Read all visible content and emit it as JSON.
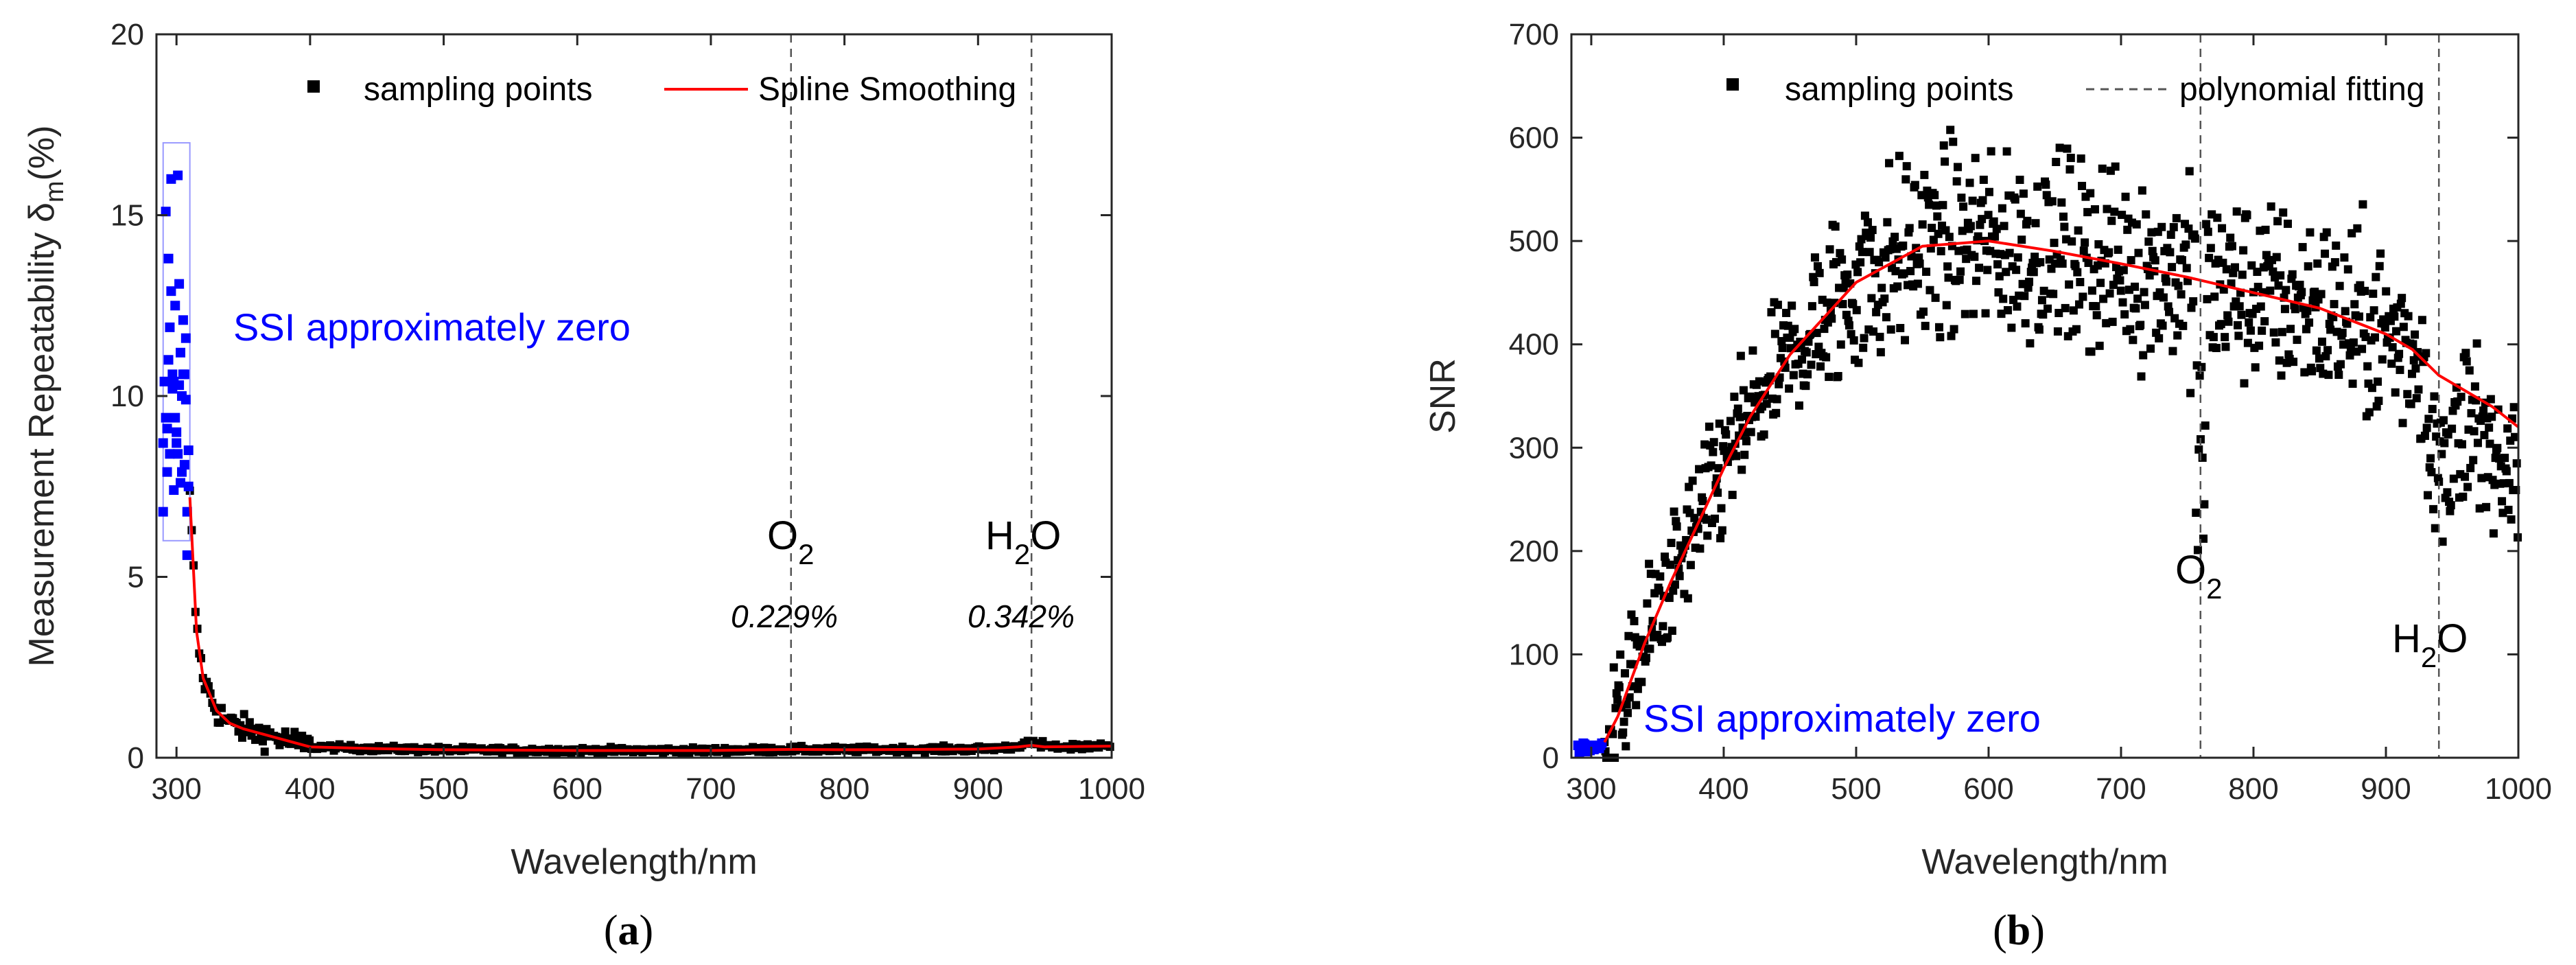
{
  "chart_data": [
    {
      "type": "scatter",
      "panel": "(a)",
      "panel_letter": "a",
      "xlabel": "Wavelength/nm",
      "ylabel": "Measurement Repeatability δ",
      "ylabel_sub": "m",
      "ylabel_unit": "(%)",
      "xlim": [
        285,
        1000
      ],
      "ylim": [
        0,
        20
      ],
      "xticks": [
        300,
        400,
        500,
        600,
        700,
        800,
        900,
        1000
      ],
      "yticks": [
        0,
        5,
        10,
        15,
        20
      ],
      "legend": {
        "points": "sampling points",
        "line": "Spline Smoothing",
        "position": "top"
      },
      "ssi_label": "SSI approximately zero",
      "ssi_box": {
        "x": [
          290,
          310
        ],
        "y": [
          6,
          17
        ]
      },
      "ssi_points": {
        "x": [
          290,
          291,
          292,
          293,
          294,
          295,
          296,
          297,
          298,
          299,
          300,
          301,
          302,
          303,
          304,
          305,
          306,
          307,
          308,
          309,
          290,
          292,
          294,
          296,
          298,
          300,
          302,
          304,
          306,
          308,
          291,
          293,
          295,
          297,
          299,
          301,
          303,
          305,
          307,
          309
        ],
        "y": [
          6.8,
          10.4,
          15.1,
          9.1,
          13.8,
          8.4,
          16.0,
          10.6,
          7.4,
          12.5,
          9.0,
          16.1,
          13.1,
          7.6,
          10.0,
          12.1,
          8.1,
          11.6,
          5.6,
          7.5,
          8.7,
          9.4,
          11.0,
          12.9,
          10.4,
          8.7,
          10.3,
          7.9,
          10.6,
          6.8,
          10.4,
          7.9,
          11.9,
          10.2,
          9.4,
          8.4,
          11.2,
          10.6,
          9.9,
          8.5
        ]
      },
      "curve": {
        "x": [
          310,
          315,
          320,
          330,
          340,
          350,
          370,
          400,
          450,
          500,
          600,
          700,
          760,
          800,
          900,
          930,
          940,
          950,
          1000
        ],
        "y": [
          7.2,
          3.5,
          2.2,
          1.3,
          0.95,
          0.8,
          0.6,
          0.3,
          0.25,
          0.22,
          0.2,
          0.2,
          0.229,
          0.22,
          0.24,
          0.3,
          0.342,
          0.3,
          0.32
        ]
      },
      "lines": [
        {
          "x": 760,
          "label": "O",
          "sub": "2",
          "value": "0.229%"
        },
        {
          "x": 940,
          "label": "H",
          "sub": "2",
          "label2": "O",
          "value": "0.342%"
        }
      ],
      "colors": {
        "points": "#000000",
        "curve": "#ff0000",
        "ssi": "#0000ff",
        "ssi_box": "#9999ff",
        "vline": "#555555"
      }
    },
    {
      "type": "scatter",
      "panel": "(b)",
      "panel_letter": "b",
      "xlabel": "Wavelength/nm",
      "ylabel": "SNR",
      "xlim": [
        285,
        1000
      ],
      "ylim": [
        0,
        700
      ],
      "xticks": [
        300,
        400,
        500,
        600,
        700,
        800,
        900,
        1000
      ],
      "yticks": [
        0,
        100,
        200,
        300,
        400,
        500,
        600,
        700
      ],
      "legend": {
        "points": "sampling points",
        "line": "polynomial fitting",
        "position": "top"
      },
      "ssi_label": "SSI approximately zero",
      "ssi_points": {
        "x": [
          290,
          292,
          294,
          296,
          298,
          300,
          302,
          304,
          306,
          308,
          291,
          295,
          299,
          303,
          307
        ],
        "y": [
          12,
          8,
          14,
          6,
          10,
          12,
          8,
          11,
          9,
          14,
          5,
          13,
          7,
          10,
          12
        ]
      },
      "curve": {
        "x": [
          310,
          320,
          340,
          360,
          380,
          400,
          420,
          450,
          500,
          550,
          600,
          650,
          700,
          750,
          800,
          850,
          900,
          920,
          940,
          960,
          980,
          1000
        ],
        "y": [
          15,
          40,
          110,
          170,
          225,
          280,
          330,
          390,
          460,
          495,
          500,
          490,
          478,
          465,
          450,
          435,
          410,
          395,
          370,
          355,
          340,
          320
        ]
      },
      "lines": [
        {
          "x": 760,
          "label": "O",
          "sub": "2"
        },
        {
          "x": 940,
          "label": "H",
          "sub": "2",
          "label2": "O"
        }
      ],
      "colors": {
        "points": "#000000",
        "curve": "#ff0000",
        "ssi": "#0000ff",
        "vline": "#555555"
      }
    }
  ]
}
